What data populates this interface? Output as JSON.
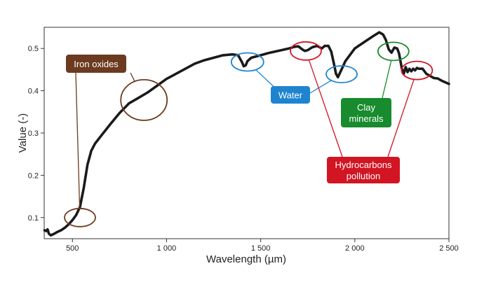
{
  "chart_data": {
    "type": "line",
    "title": "",
    "xlabel": "Wavelength (µm)",
    "ylabel": "Value (-)",
    "xlim": [
      350,
      2500
    ],
    "ylim": [
      0.05,
      0.55
    ],
    "x_ticks": [
      {
        "value": 500,
        "label": "500"
      },
      {
        "value": 1000,
        "label": "1 000"
      },
      {
        "value": 1500,
        "label": "1 500"
      },
      {
        "value": 2000,
        "label": "2 000"
      },
      {
        "value": 2500,
        "label": "2 500"
      }
    ],
    "y_ticks": [
      {
        "value": 0.1,
        "label": "0.1"
      },
      {
        "value": 0.2,
        "label": "0.2"
      },
      {
        "value": 0.3,
        "label": "0.3"
      },
      {
        "value": 0.4,
        "label": "0.4"
      },
      {
        "value": 0.5,
        "label": "0.5"
      }
    ],
    "grid": false,
    "series": [
      {
        "color": "#1a1a1a",
        "points": [
          [
            352,
            0.07
          ],
          [
            360,
            0.068
          ],
          [
            368,
            0.072
          ],
          [
            375,
            0.062
          ],
          [
            385,
            0.058
          ],
          [
            400,
            0.061
          ],
          [
            420,
            0.066
          ],
          [
            440,
            0.07
          ],
          [
            460,
            0.076
          ],
          [
            480,
            0.084
          ],
          [
            500,
            0.094
          ],
          [
            520,
            0.106
          ],
          [
            540,
            0.125
          ],
          [
            560,
            0.17
          ],
          [
            580,
            0.225
          ],
          [
            600,
            0.258
          ],
          [
            620,
            0.275
          ],
          [
            650,
            0.292
          ],
          [
            700,
            0.32
          ],
          [
            750,
            0.347
          ],
          [
            800,
            0.37
          ],
          [
            850,
            0.383
          ],
          [
            900,
            0.396
          ],
          [
            950,
            0.412
          ],
          [
            1000,
            0.428
          ],
          [
            1050,
            0.44
          ],
          [
            1100,
            0.452
          ],
          [
            1150,
            0.464
          ],
          [
            1200,
            0.472
          ],
          [
            1250,
            0.478
          ],
          [
            1300,
            0.484
          ],
          [
            1350,
            0.486
          ],
          [
            1380,
            0.484
          ],
          [
            1400,
            0.468
          ],
          [
            1410,
            0.458
          ],
          [
            1420,
            0.46
          ],
          [
            1430,
            0.47
          ],
          [
            1450,
            0.478
          ],
          [
            1500,
            0.484
          ],
          [
            1550,
            0.49
          ],
          [
            1600,
            0.495
          ],
          [
            1650,
            0.5
          ],
          [
            1680,
            0.504
          ],
          [
            1700,
            0.505
          ],
          [
            1720,
            0.498
          ],
          [
            1735,
            0.494
          ],
          [
            1750,
            0.496
          ],
          [
            1775,
            0.503
          ],
          [
            1800,
            0.506
          ],
          [
            1825,
            0.5
          ],
          [
            1840,
            0.506
          ],
          [
            1860,
            0.506
          ],
          [
            1875,
            0.492
          ],
          [
            1890,
            0.462
          ],
          [
            1900,
            0.44
          ],
          [
            1910,
            0.432
          ],
          [
            1925,
            0.446
          ],
          [
            1950,
            0.47
          ],
          [
            1980,
            0.488
          ],
          [
            2000,
            0.5
          ],
          [
            2050,
            0.515
          ],
          [
            2100,
            0.53
          ],
          [
            2130,
            0.538
          ],
          [
            2150,
            0.533
          ],
          [
            2165,
            0.52
          ],
          [
            2180,
            0.498
          ],
          [
            2195,
            0.49
          ],
          [
            2210,
            0.502
          ],
          [
            2225,
            0.5
          ],
          [
            2235,
            0.488
          ],
          [
            2250,
            0.452
          ],
          [
            2260,
            0.44
          ],
          [
            2270,
            0.456
          ],
          [
            2280,
            0.444
          ],
          [
            2290,
            0.452
          ],
          [
            2300,
            0.446
          ],
          [
            2310,
            0.452
          ],
          [
            2320,
            0.448
          ],
          [
            2330,
            0.454
          ],
          [
            2340,
            0.452
          ],
          [
            2360,
            0.452
          ],
          [
            2380,
            0.44
          ],
          [
            2400,
            0.435
          ],
          [
            2420,
            0.43
          ],
          [
            2440,
            0.429
          ],
          [
            2460,
            0.424
          ],
          [
            2480,
            0.42
          ],
          [
            2500,
            0.416
          ]
        ]
      }
    ],
    "annotations": [
      {
        "id": "iron-oxides",
        "lines": [
          "Iron oxides"
        ],
        "color": "#6b3a1f",
        "rings": [
          [
            540,
            0.1
          ],
          [
            880,
            0.378
          ]
        ]
      },
      {
        "id": "water",
        "lines": [
          "Water"
        ],
        "color": "#1f84d0",
        "rings": [
          [
            1430,
            0.468
          ],
          [
            1930,
            0.439
          ]
        ]
      },
      {
        "id": "clay-minerals",
        "lines": [
          "Clay",
          "minerals"
        ],
        "color": "#178b2d",
        "rings": [
          [
            2205,
            0.493
          ]
        ]
      },
      {
        "id": "hydrocarbons",
        "lines": [
          "Hydrocarbons",
          "pollution"
        ],
        "color": "#d11523",
        "rings": [
          [
            1740,
            0.494
          ],
          [
            2330,
            0.448
          ]
        ]
      }
    ]
  }
}
